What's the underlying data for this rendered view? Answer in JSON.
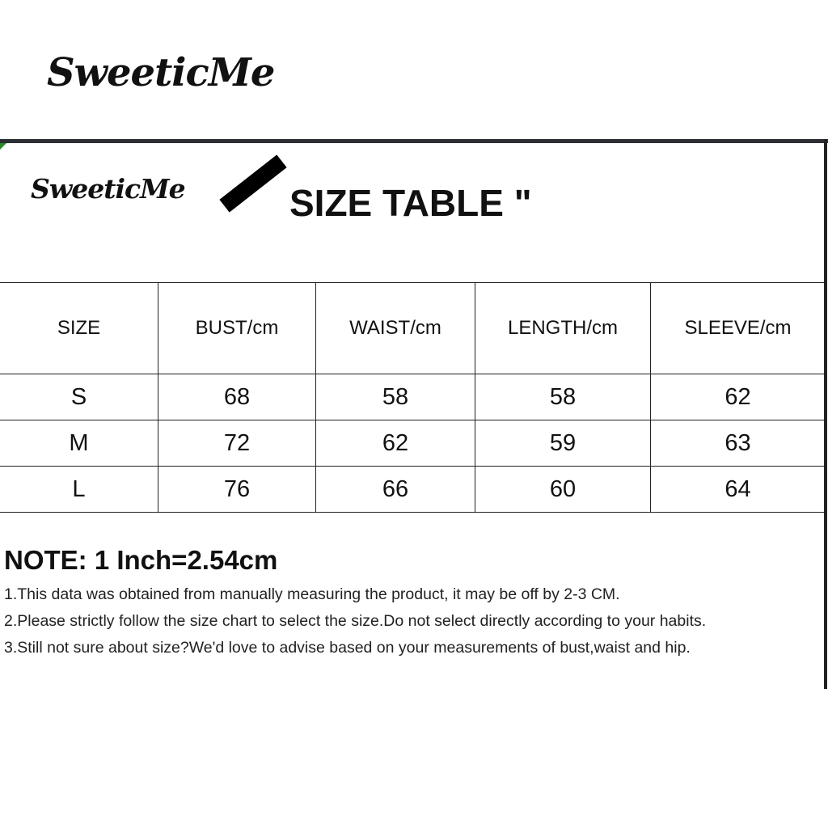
{
  "brand": "SweeticMe",
  "title": "SIZE TABLE \"",
  "table": {
    "headers": [
      "SIZE",
      "BUST/cm",
      "WAIST/cm",
      "LENGTH/cm",
      "SLEEVE/cm"
    ],
    "rows": [
      [
        "S",
        "68",
        "58",
        "58",
        "62"
      ],
      [
        "M",
        "72",
        "62",
        "59",
        "63"
      ],
      [
        "L",
        "76",
        "66",
        "60",
        "64"
      ]
    ]
  },
  "note": {
    "heading": "NOTE: 1 Inch=2.54cm",
    "lines": [
      "1.This data was obtained from manually measuring the product, it may be off by 2-3 CM.",
      "2.Please strictly follow the size chart to select the size.Do not select directly according to your habits.",
      "3.Still not sure about size?We'd love to advise based on your measurements of bust,waist and hip."
    ]
  },
  "colors": {
    "frame": "#2b2f33",
    "corner_accent": "#2a8a2a"
  }
}
